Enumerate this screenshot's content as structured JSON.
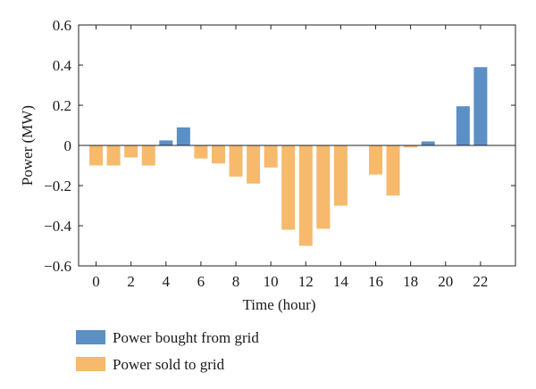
{
  "chart_data": {
    "type": "bar",
    "xlabel": "Time (hour)",
    "ylabel": "Power (MW)",
    "ylim": [
      -0.6,
      0.6
    ],
    "xlim": [
      -1,
      24
    ],
    "yticks": [
      0.6,
      0.4,
      0.2,
      0,
      -0.2,
      -0.4,
      -0.6
    ],
    "ytick_labels": [
      "0.6",
      "0.4",
      "0.2",
      "0",
      "−0.2",
      "−0.4",
      "−0.6"
    ],
    "xticks": [
      0,
      2,
      4,
      6,
      8,
      10,
      12,
      14,
      16,
      18,
      20,
      22
    ],
    "xtick_labels": [
      "0",
      "2",
      "4",
      "6",
      "8",
      "10",
      "12",
      "14",
      "16",
      "18",
      "20",
      "22"
    ],
    "grid": false,
    "legend_position": "bottom-left",
    "series": [
      {
        "name": "Power bought from grid",
        "color": "#5b8fc6",
        "points": [
          {
            "x": 4,
            "y": 0.025
          },
          {
            "x": 5,
            "y": 0.09
          },
          {
            "x": 19,
            "y": 0.02
          },
          {
            "x": 21,
            "y": 0.195
          },
          {
            "x": 22,
            "y": 0.39
          }
        ]
      },
      {
        "name": "Power sold to grid",
        "color": "#f7b96b",
        "points": [
          {
            "x": 0,
            "y": -0.1
          },
          {
            "x": 1,
            "y": -0.1
          },
          {
            "x": 2,
            "y": -0.06
          },
          {
            "x": 3,
            "y": -0.1
          },
          {
            "x": 6,
            "y": -0.065
          },
          {
            "x": 7,
            "y": -0.09
          },
          {
            "x": 8,
            "y": -0.155
          },
          {
            "x": 9,
            "y": -0.19
          },
          {
            "x": 10,
            "y": -0.11
          },
          {
            "x": 11,
            "y": -0.42
          },
          {
            "x": 12,
            "y": -0.5
          },
          {
            "x": 13,
            "y": -0.415
          },
          {
            "x": 14,
            "y": -0.3
          },
          {
            "x": 16,
            "y": -0.145
          },
          {
            "x": 17,
            "y": -0.25
          },
          {
            "x": 18,
            "y": -0.01
          }
        ]
      }
    ]
  }
}
